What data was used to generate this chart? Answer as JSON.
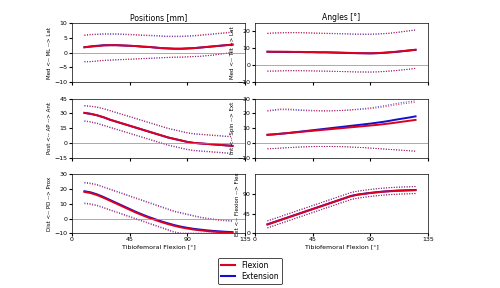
{
  "title_left": "Positions [mm]",
  "title_right": "Angles [°]",
  "xlabel": "Tibiofemoral Flexion [°]",
  "xlim": [
    0,
    135
  ],
  "flexion_color": "#dd0022",
  "extension_color": "#1111cc",
  "std_flex_color": "#e08090",
  "std_ext_color": "#8888cc",
  "legend_flex": "Flexion",
  "legend_ext": "Extension",
  "panels": [
    {
      "ylabel": "Med <-- ML --> Lat",
      "ylim": [
        -10,
        10
      ],
      "yticks": [
        -10,
        -5,
        0,
        5,
        10
      ],
      "row": 0,
      "col": 0,
      "x_start": 10,
      "x_end": 125,
      "flex_mean": [
        1.8,
        2.0,
        2.2,
        2.4,
        2.5,
        2.5,
        2.4,
        2.3,
        2.2,
        2.0,
        1.9,
        1.7,
        1.5,
        1.4,
        1.3,
        1.3,
        1.4,
        1.5,
        1.7,
        1.9,
        2.1,
        2.3,
        2.5,
        2.7
      ],
      "flex_std_up": [
        6.0,
        6.2,
        6.3,
        6.4,
        6.4,
        6.4,
        6.3,
        6.2,
        6.1,
        6.0,
        5.9,
        5.8,
        5.7,
        5.6,
        5.6,
        5.6,
        5.7,
        5.8,
        6.0,
        6.2,
        6.4,
        6.6,
        6.8,
        7.0
      ],
      "flex_std_lo": [
        -3.0,
        -3.0,
        -2.8,
        -2.6,
        -2.5,
        -2.4,
        -2.3,
        -2.2,
        -2.1,
        -2.0,
        -1.9,
        -1.8,
        -1.7,
        -1.6,
        -1.5,
        -1.5,
        -1.4,
        -1.3,
        -1.2,
        -1.0,
        -0.8,
        -0.5,
        -0.2,
        0.0
      ],
      "ext_mean": [
        1.8,
        2.1,
        2.3,
        2.5,
        2.5,
        2.5,
        2.4,
        2.3,
        2.2,
        2.0,
        1.9,
        1.7,
        1.5,
        1.4,
        1.3,
        1.3,
        1.4,
        1.5,
        1.7,
        1.9,
        2.1,
        2.3,
        2.5,
        2.7
      ],
      "ext_std_up": [
        5.8,
        6.0,
        6.1,
        6.2,
        6.2,
        6.2,
        6.1,
        6.0,
        5.9,
        5.8,
        5.7,
        5.6,
        5.5,
        5.4,
        5.4,
        5.4,
        5.5,
        5.6,
        5.8,
        6.0,
        6.2,
        6.4,
        6.6,
        6.8
      ],
      "ext_std_lo": [
        -3.2,
        -3.1,
        -2.9,
        -2.7,
        -2.6,
        -2.5,
        -2.4,
        -2.3,
        -2.2,
        -2.1,
        -2.0,
        -1.9,
        -1.8,
        -1.7,
        -1.6,
        -1.6,
        -1.5,
        -1.4,
        -1.3,
        -1.1,
        -0.9,
        -0.6,
        -0.3,
        0.0
      ]
    },
    {
      "ylabel": "Med <-- Tilt --> Lat",
      "ylim": [
        -10,
        25
      ],
      "yticks": [
        -10,
        0,
        10,
        20
      ],
      "row": 0,
      "col": 1,
      "x_start": 10,
      "x_end": 125,
      "flex_mean": [
        8.0,
        8.0,
        8.0,
        8.0,
        7.9,
        7.9,
        7.8,
        7.8,
        7.7,
        7.7,
        7.6,
        7.5,
        7.4,
        7.3,
        7.2,
        7.1,
        7.1,
        7.2,
        7.4,
        7.7,
        8.0,
        8.4,
        8.8,
        9.2
      ],
      "flex_std_up": [
        19.0,
        19.2,
        19.3,
        19.4,
        19.4,
        19.4,
        19.3,
        19.2,
        19.1,
        19.0,
        18.9,
        18.8,
        18.7,
        18.6,
        18.5,
        18.5,
        18.5,
        18.6,
        18.8,
        19.1,
        19.5,
        20.0,
        20.5,
        21.0
      ],
      "flex_std_lo": [
        -3.5,
        -3.4,
        -3.3,
        -3.2,
        -3.2,
        -3.2,
        -3.3,
        -3.3,
        -3.4,
        -3.5,
        -3.6,
        -3.7,
        -3.8,
        -3.9,
        -4.0,
        -4.0,
        -4.0,
        -3.9,
        -3.7,
        -3.4,
        -3.1,
        -2.7,
        -2.3,
        -1.8
      ],
      "ext_mean": [
        8.0,
        7.9,
        7.9,
        7.8,
        7.8,
        7.8,
        7.7,
        7.7,
        7.6,
        7.6,
        7.5,
        7.4,
        7.3,
        7.2,
        7.1,
        7.1,
        7.0,
        7.1,
        7.3,
        7.6,
        7.9,
        8.3,
        8.7,
        9.1
      ],
      "ext_std_up": [
        18.8,
        19.0,
        19.1,
        19.2,
        19.2,
        19.2,
        19.1,
        19.0,
        18.9,
        18.8,
        18.7,
        18.6,
        18.5,
        18.4,
        18.3,
        18.3,
        18.3,
        18.4,
        18.6,
        18.9,
        19.3,
        19.8,
        20.3,
        20.8
      ],
      "ext_std_lo": [
        -3.5,
        -3.5,
        -3.4,
        -3.3,
        -3.3,
        -3.3,
        -3.3,
        -3.4,
        -3.5,
        -3.5,
        -3.6,
        -3.7,
        -3.8,
        -3.9,
        -4.0,
        -4.0,
        -4.1,
        -4.0,
        -3.8,
        -3.5,
        -3.2,
        -2.8,
        -2.4,
        -1.9
      ]
    },
    {
      "ylabel": "Post <-- AP --> Ant",
      "ylim": [
        -15,
        45
      ],
      "yticks": [
        -15,
        0,
        15,
        30,
        45
      ],
      "row": 1,
      "col": 0,
      "x_start": 10,
      "x_end": 125,
      "flex_mean": [
        30.5,
        29.5,
        28.0,
        26.0,
        23.5,
        21.5,
        19.5,
        17.5,
        15.5,
        13.5,
        11.5,
        9.5,
        7.5,
        5.5,
        4.0,
        2.5,
        1.0,
        0.0,
        -0.5,
        -1.0,
        -1.5,
        -2.0,
        -2.5,
        -3.0
      ],
      "flex_std_up": [
        38.0,
        37.5,
        36.5,
        35.0,
        33.0,
        31.0,
        29.0,
        27.0,
        25.0,
        23.0,
        21.0,
        19.0,
        17.0,
        15.0,
        13.5,
        12.0,
        10.5,
        9.5,
        9.0,
        8.5,
        8.0,
        7.5,
        7.0,
        6.5
      ],
      "flex_std_lo": [
        22.0,
        21.0,
        19.5,
        17.5,
        15.5,
        13.5,
        11.5,
        9.5,
        7.5,
        5.5,
        3.5,
        1.5,
        -0.5,
        -2.5,
        -4.0,
        -5.5,
        -7.0,
        -8.0,
        -8.5,
        -9.0,
        -9.5,
        -10.0,
        -10.5,
        -11.0
      ],
      "ext_mean": [
        30.5,
        29.5,
        28.0,
        26.0,
        23.5,
        21.5,
        19.5,
        17.5,
        15.5,
        13.5,
        11.5,
        9.5,
        7.5,
        5.5,
        4.0,
        2.5,
        1.0,
        0.0,
        -0.5,
        -1.0,
        -1.5,
        -2.0,
        -2.5,
        -3.0
      ],
      "ext_std_up": [
        37.5,
        37.0,
        36.0,
        34.5,
        32.5,
        30.5,
        28.5,
        26.5,
        24.5,
        22.5,
        20.5,
        18.5,
        16.5,
        14.5,
        13.0,
        11.5,
        10.0,
        9.0,
        8.5,
        8.0,
        7.5,
        7.0,
        6.5,
        6.0
      ],
      "ext_std_lo": [
        22.5,
        21.5,
        20.0,
        18.0,
        16.0,
        14.0,
        12.0,
        10.0,
        8.0,
        6.0,
        4.0,
        2.0,
        0.0,
        -2.0,
        -3.5,
        -5.0,
        -6.5,
        -7.5,
        -8.0,
        -8.5,
        -9.0,
        -9.5,
        -10.0,
        -10.5
      ]
    },
    {
      "ylabel": "Int <-- Spin --> Ext",
      "ylim": [
        -10,
        30
      ],
      "yticks": [
        -10,
        0,
        10,
        20,
        30
      ],
      "row": 1,
      "col": 1,
      "x_start": 10,
      "x_end": 125,
      "flex_mean": [
        5.5,
        5.8,
        6.2,
        6.6,
        7.0,
        7.4,
        7.8,
        8.2,
        8.6,
        9.0,
        9.4,
        9.8,
        10.2,
        10.6,
        11.0,
        11.4,
        11.8,
        12.2,
        12.7,
        13.2,
        13.8,
        14.4,
        15.0,
        15.6
      ],
      "flex_std_up": [
        22.0,
        22.5,
        23.0,
        23.0,
        22.8,
        22.5,
        22.3,
        22.1,
        21.9,
        21.8,
        21.8,
        21.9,
        22.0,
        22.2,
        22.5,
        22.8,
        23.2,
        23.7,
        24.3,
        25.0,
        25.8,
        26.5,
        27.0,
        27.5
      ],
      "flex_std_lo": [
        -4.0,
        -3.8,
        -3.5,
        -3.2,
        -3.0,
        -2.8,
        -2.6,
        -2.5,
        -2.4,
        -2.4,
        -2.4,
        -2.5,
        -2.6,
        -2.8,
        -3.0,
        -3.2,
        -3.5,
        -3.8,
        -4.1,
        -4.4,
        -4.7,
        -5.0,
        -5.3,
        -5.6
      ],
      "ext_mean": [
        5.5,
        5.8,
        6.2,
        6.6,
        7.1,
        7.6,
        8.1,
        8.6,
        9.1,
        9.6,
        10.1,
        10.6,
        11.1,
        11.6,
        12.1,
        12.6,
        13.1,
        13.7,
        14.3,
        15.0,
        15.8,
        16.5,
        17.2,
        18.0
      ],
      "ext_std_up": [
        21.5,
        22.0,
        22.5,
        22.5,
        22.3,
        22.0,
        21.8,
        21.7,
        21.6,
        21.6,
        21.7,
        21.9,
        22.2,
        22.5,
        22.9,
        23.3,
        23.8,
        24.4,
        25.1,
        25.9,
        26.7,
        27.4,
        28.0,
        28.5
      ],
      "ext_std_lo": [
        -4.0,
        -3.8,
        -3.5,
        -3.3,
        -3.0,
        -2.8,
        -2.6,
        -2.5,
        -2.4,
        -2.4,
        -2.4,
        -2.5,
        -2.6,
        -2.8,
        -3.0,
        -3.2,
        -3.5,
        -3.8,
        -4.1,
        -4.4,
        -4.7,
        -5.0,
        -5.3,
        -5.6
      ]
    },
    {
      "ylabel": "Dist <-- PD --> Prox",
      "ylim": [
        -10,
        30
      ],
      "yticks": [
        -10,
        0,
        10,
        20,
        30
      ],
      "row": 2,
      "col": 0,
      "x_start": 10,
      "x_end": 125,
      "flex_mean": [
        18.0,
        17.2,
        15.8,
        14.0,
        12.0,
        10.0,
        8.0,
        6.0,
        4.0,
        2.2,
        0.5,
        -1.0,
        -2.5,
        -3.8,
        -5.0,
        -6.0,
        -6.8,
        -7.5,
        -8.0,
        -8.5,
        -8.9,
        -9.2,
        -9.5,
        -9.7
      ],
      "flex_std_up": [
        24.0,
        23.5,
        22.5,
        21.0,
        19.5,
        18.0,
        16.5,
        15.0,
        13.5,
        12.0,
        10.5,
        9.0,
        7.5,
        6.0,
        4.5,
        3.5,
        2.5,
        1.5,
        0.5,
        -0.2,
        -0.8,
        -1.3,
        -1.7,
        -2.0
      ],
      "flex_std_lo": [
        10.0,
        9.5,
        8.5,
        7.0,
        5.5,
        4.0,
        2.5,
        1.0,
        -0.5,
        -2.0,
        -3.5,
        -5.0,
        -6.5,
        -8.0,
        -9.5,
        -10.0,
        -10.0,
        -10.0,
        -10.0,
        -10.0,
        -10.0,
        -10.0,
        -10.0,
        -10.0
      ],
      "ext_mean": [
        18.5,
        17.7,
        16.3,
        14.5,
        12.5,
        10.5,
        8.5,
        6.5,
        4.5,
        2.7,
        1.0,
        -0.5,
        -2.0,
        -3.3,
        -4.5,
        -5.5,
        -6.3,
        -7.0,
        -7.5,
        -8.0,
        -8.4,
        -8.7,
        -9.0,
        -9.2
      ],
      "ext_std_up": [
        24.5,
        24.0,
        23.0,
        21.5,
        20.0,
        18.5,
        17.0,
        15.5,
        14.0,
        12.5,
        11.0,
        9.5,
        8.0,
        6.5,
        5.0,
        4.0,
        3.0,
        2.0,
        1.0,
        0.3,
        -0.3,
        -0.8,
        -1.2,
        -1.5
      ],
      "ext_std_lo": [
        10.5,
        10.0,
        9.0,
        7.5,
        6.0,
        4.5,
        3.0,
        1.5,
        0.0,
        -1.5,
        -3.0,
        -4.5,
        -6.0,
        -7.5,
        -9.0,
        -10.0,
        -10.0,
        -10.0,
        -10.0,
        -10.0,
        -10.0,
        -10.0,
        -10.0,
        -10.0
      ]
    },
    {
      "ylabel": "Ext <-- Flexion --> Flex",
      "ylim": [
        0,
        135
      ],
      "yticks": [
        0,
        45,
        90
      ],
      "row": 2,
      "col": 1,
      "x_start": 10,
      "x_end": 125,
      "flex_mean": [
        20.0,
        25.0,
        30.0,
        35.0,
        40.0,
        45.0,
        50.0,
        55.0,
        60.0,
        65.0,
        70.0,
        75.0,
        80.0,
        85.0,
        88.0,
        90.0,
        92.0,
        93.5,
        95.0,
        96.0,
        97.0,
        97.5,
        98.0,
        98.5
      ],
      "flex_std_up": [
        28.0,
        33.0,
        38.0,
        43.0,
        48.0,
        53.0,
        58.0,
        63.0,
        68.0,
        73.0,
        78.0,
        83.0,
        88.0,
        93.0,
        96.0,
        98.0,
        100.0,
        101.5,
        103.0,
        104.0,
        105.0,
        105.5,
        106.0,
        106.5
      ],
      "flex_std_lo": [
        12.0,
        17.0,
        22.0,
        27.0,
        32.0,
        37.0,
        42.0,
        47.0,
        52.0,
        57.0,
        62.0,
        67.0,
        72.0,
        77.0,
        80.0,
        82.0,
        84.0,
        85.5,
        87.0,
        88.0,
        89.0,
        89.5,
        90.0,
        90.5
      ],
      "ext_mean": [
        20.5,
        25.5,
        30.5,
        35.5,
        40.5,
        45.5,
        50.5,
        55.5,
        60.5,
        65.5,
        70.5,
        75.5,
        80.5,
        85.5,
        88.5,
        90.5,
        92.5,
        94.0,
        95.5,
        96.5,
        97.5,
        98.0,
        98.5,
        99.0
      ],
      "ext_std_up": [
        28.5,
        33.5,
        38.5,
        43.5,
        48.5,
        53.5,
        58.5,
        63.5,
        68.5,
        73.5,
        78.5,
        83.5,
        88.5,
        93.5,
        96.5,
        98.5,
        100.5,
        102.0,
        103.5,
        104.5,
        105.5,
        106.0,
        106.5,
        107.0
      ],
      "ext_std_lo": [
        12.5,
        17.5,
        22.5,
        27.5,
        32.5,
        37.5,
        42.5,
        47.5,
        52.5,
        57.5,
        62.5,
        67.5,
        72.5,
        77.5,
        80.5,
        82.5,
        84.5,
        86.0,
        87.5,
        88.5,
        89.5,
        90.0,
        90.5,
        91.0
      ]
    }
  ]
}
